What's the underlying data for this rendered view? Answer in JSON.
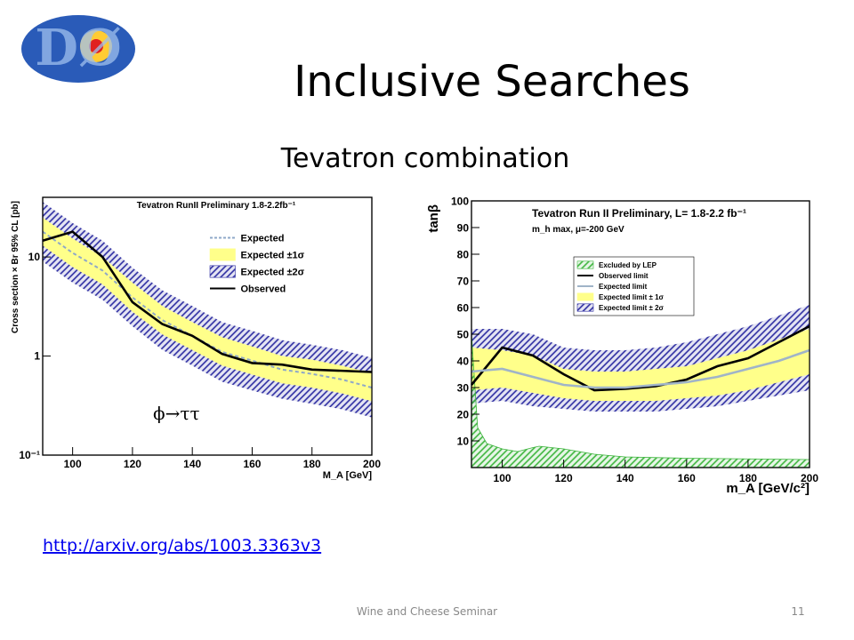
{
  "slide": {
    "logo": "DØ",
    "title": "Inclusive Searches",
    "subtitle": "Tevatron combination",
    "link": "http://arxiv.org/abs/1003.3363v3",
    "footer": "Wine and Cheese Seminar",
    "page": 11
  },
  "chart_data": [
    {
      "type": "line",
      "title": "Tevatron RunII Preliminary 1.8-2.2fb⁻¹",
      "ylabel": "Cross section × Br 95% CL [pb]",
      "xlabel": "M_A [GeV]",
      "annotation": "ϕ→ττ",
      "x": [
        90,
        100,
        110,
        120,
        130,
        140,
        150,
        160,
        170,
        180,
        190,
        200
      ],
      "xlim": [
        90,
        200
      ],
      "xticks": [
        100,
        120,
        140,
        160,
        180,
        200
      ],
      "ylim": [
        0.1,
        40
      ],
      "yticks": [
        {
          "value": 0.1,
          "label": "10⁻¹"
        },
        1,
        10
      ],
      "log_y": true,
      "series": [
        {
          "name": "Expected",
          "color": "#8fa8c8",
          "dashed": true,
          "values": [
            18,
            11,
            7.3,
            3.9,
            2.3,
            1.6,
            1.1,
            0.9,
            0.73,
            0.66,
            0.58,
            0.48
          ]
        },
        {
          "name": "Expected ±1σ",
          "color": "#ffff8a",
          "hatch": false,
          "lower": [
            13,
            7.9,
            5.3,
            2.8,
            1.65,
            1.15,
            0.8,
            0.65,
            0.53,
            0.48,
            0.42,
            0.35
          ],
          "upper": [
            25,
            15.4,
            10,
            5.5,
            3.2,
            2.2,
            1.55,
            1.25,
            1.0,
            0.92,
            0.8,
            0.67
          ]
        },
        {
          "name": "Expected ±2σ",
          "color": "#2a2aa0",
          "hatch": true,
          "lower": [
            9,
            5.5,
            3.7,
            2,
            1.15,
            0.8,
            0.55,
            0.45,
            0.37,
            0.33,
            0.29,
            0.24
          ],
          "upper": [
            36,
            22,
            14.6,
            7.8,
            4.6,
            3.2,
            2.2,
            1.8,
            1.45,
            1.3,
            1.15,
            0.96
          ]
        },
        {
          "name": "Observed",
          "color": "#000000",
          "values": [
            14.6,
            18,
            10,
            3.5,
            2.1,
            1.6,
            1.05,
            0.85,
            0.82,
            0.73,
            0.71,
            0.69
          ]
        }
      ]
    },
    {
      "type": "line",
      "title": "Tevatron Run II Preliminary, L= 1.8-2.2 fb⁻¹",
      "subtitle": "m_h max, μ=-200 GeV",
      "ylabel": "tanβ",
      "xlabel": "m_A [GeV/c²]",
      "x": [
        90,
        100,
        110,
        120,
        130,
        140,
        150,
        160,
        170,
        180,
        190,
        200
      ],
      "xlim": [
        90,
        200
      ],
      "xticks": [
        100,
        120,
        140,
        160,
        180,
        200
      ],
      "ylim": [
        0,
        100
      ],
      "yticks": [
        10,
        20,
        30,
        40,
        50,
        60,
        70,
        80,
        90,
        100
      ],
      "log_y": false,
      "series": [
        {
          "name": "Excluded by LEP",
          "color": "#3cb43c",
          "hatch": true,
          "fill_below": true,
          "x": [
            90,
            92,
            95,
            100,
            105,
            110,
            112,
            120,
            130,
            140,
            160,
            200
          ],
          "values": [
            50,
            15,
            9,
            7,
            6,
            7.5,
            8,
            7,
            5,
            4,
            3.5,
            3
          ]
        },
        {
          "name": "Observed limit",
          "color": "#000000",
          "values": [
            31,
            45,
            42,
            35,
            29,
            29.5,
            30.5,
            33,
            38,
            41,
            47,
            53
          ]
        },
        {
          "name": "Expected limit",
          "color": "#a0b4c8",
          "values": [
            36,
            37,
            34,
            31,
            30,
            30,
            31,
            32,
            34,
            37,
            40,
            44
          ]
        },
        {
          "name": "Expected limit ± 1σ",
          "color": "#ffff8a",
          "hatch": false,
          "lower": [
            29,
            30,
            28,
            26,
            25,
            25,
            25,
            26,
            27,
            29,
            32,
            35
          ],
          "upper": [
            45,
            44,
            42,
            37,
            36,
            36,
            37,
            38,
            41,
            44,
            48,
            52
          ]
        },
        {
          "name": "Expected limit ± 2σ",
          "color": "#2a2aa0",
          "hatch": true,
          "lower": [
            24,
            25,
            23,
            22,
            21,
            21,
            21,
            22,
            23,
            25,
            27,
            29
          ],
          "upper": [
            52,
            52,
            50,
            45,
            44,
            44,
            45,
            47,
            50,
            53,
            57,
            61
          ]
        }
      ]
    }
  ]
}
